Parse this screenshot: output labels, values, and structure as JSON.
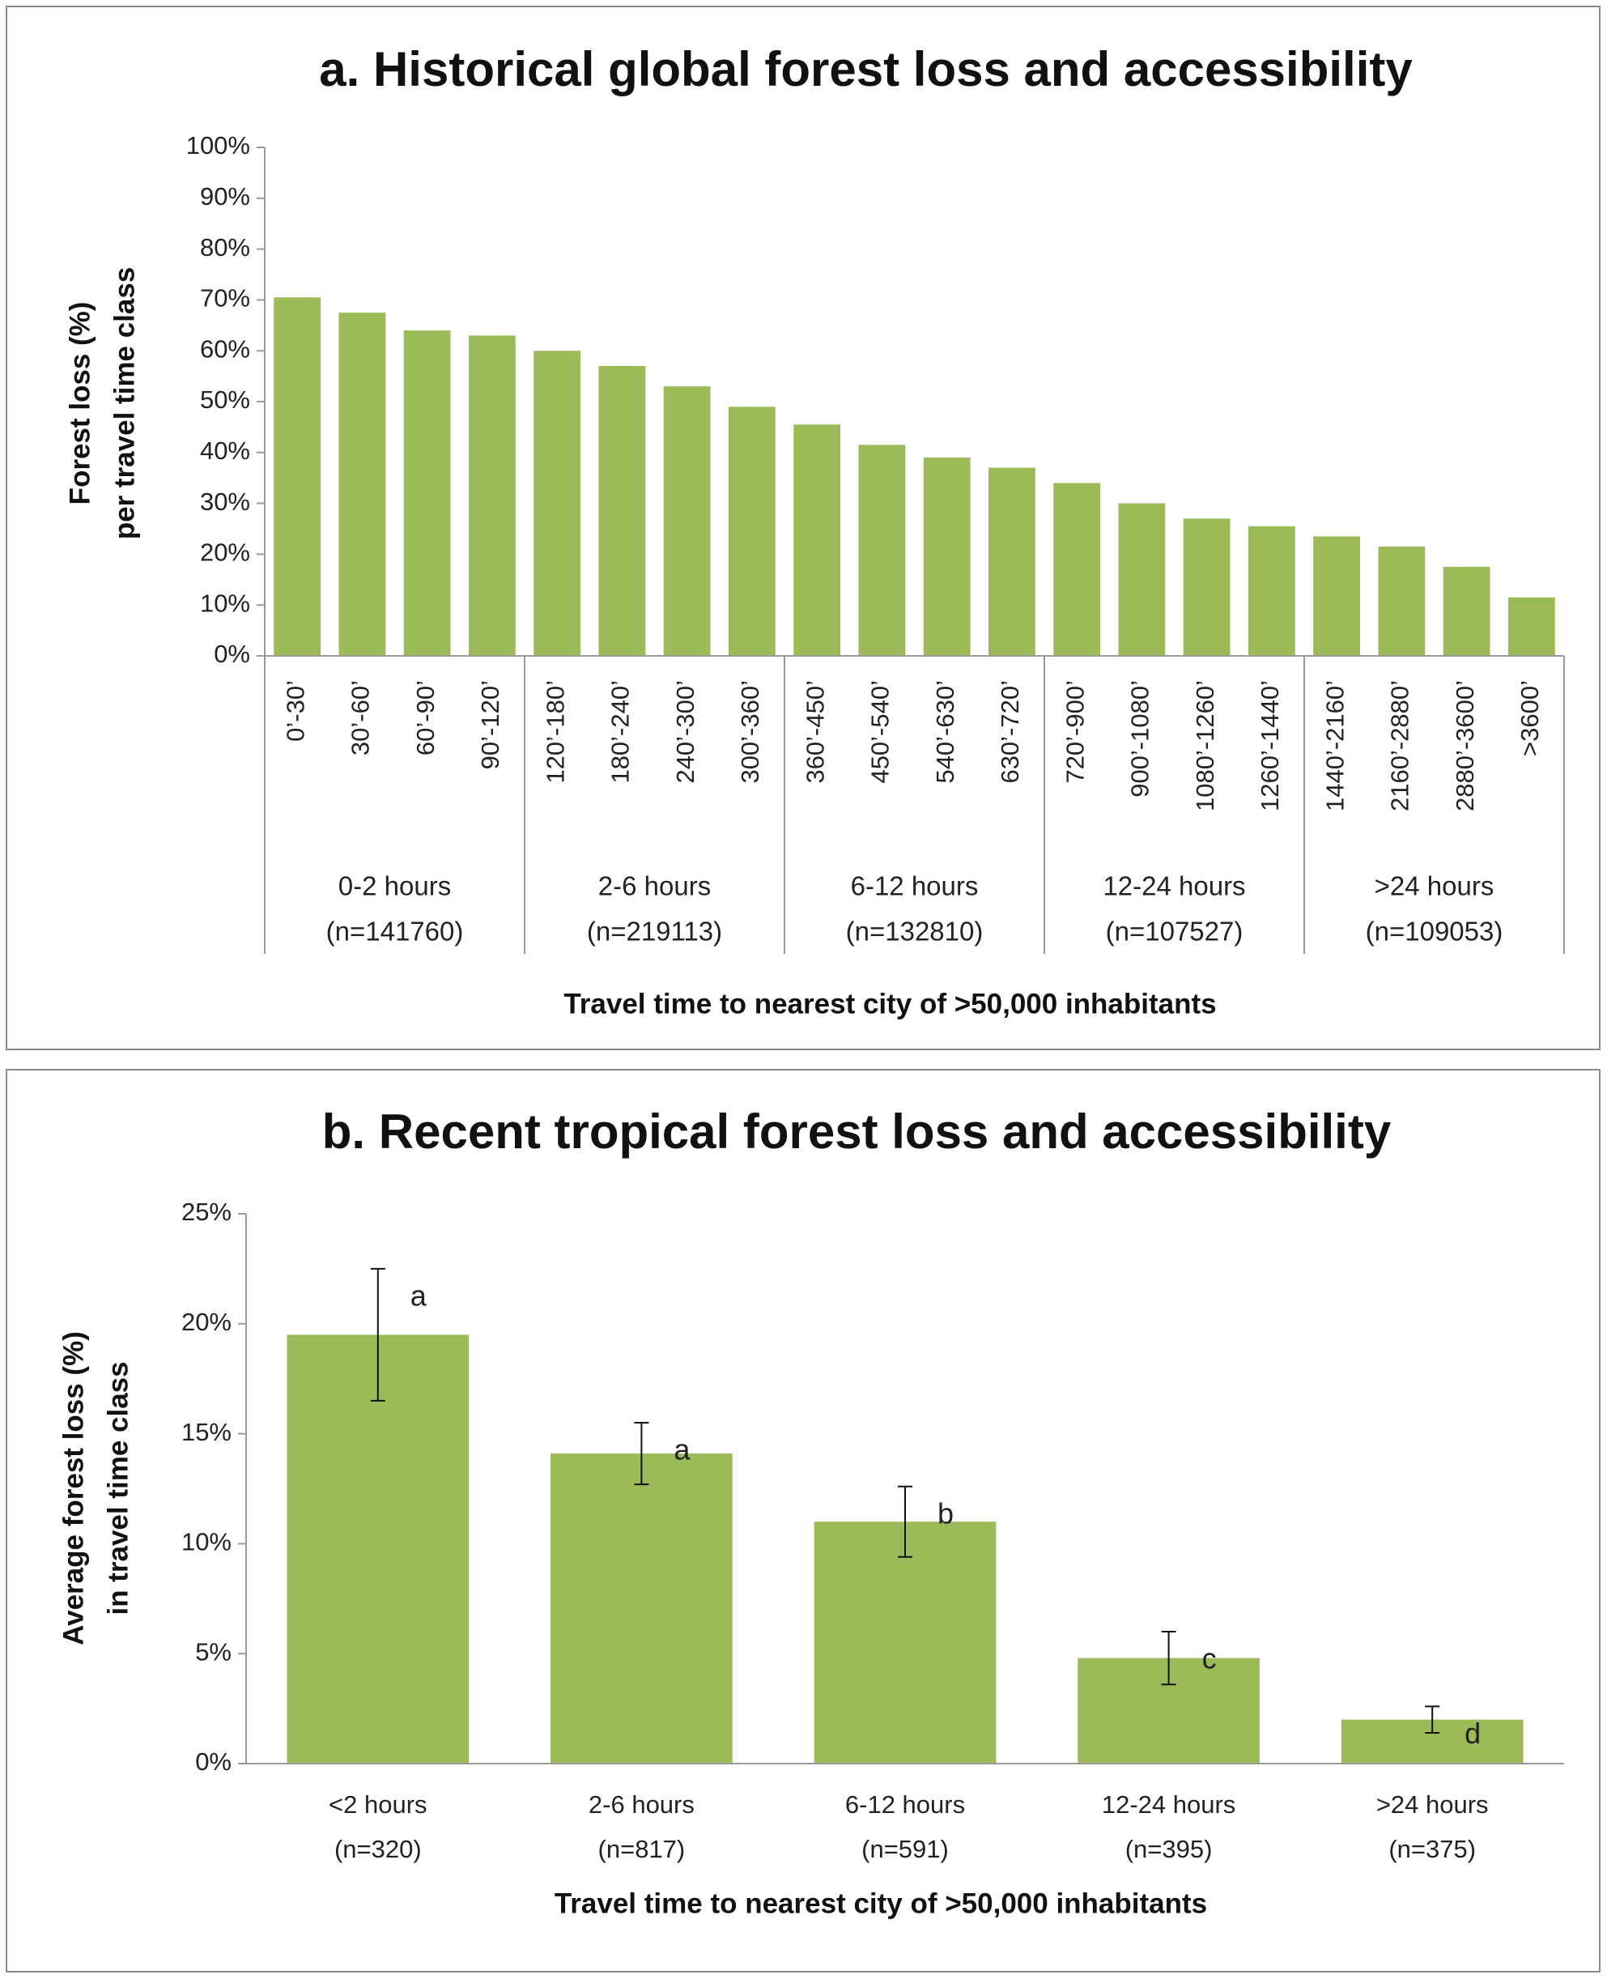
{
  "chart_data": [
    {
      "type": "bar",
      "title": "a. Historical global forest loss and accessibility",
      "y_label": [
        "Forest loss (%)",
        "per travel time class"
      ],
      "x_label": "Travel time to nearest city of >50,000 inhabitants",
      "categories": [
        "0’-30’",
        "30’-60’",
        "60’-90’",
        "90’-120’",
        "120’-180’",
        "180’-240’",
        "240’-300’",
        "300’-360’",
        "360’-450’",
        "450’-540’",
        "540’-630’",
        "630’-720’",
        "720’-900’",
        "900’-1080’",
        "1080’-1260’",
        "1260’-1440’",
        "1440’-2160’",
        "2160’-2880’",
        "2880’-3600’",
        ">3600’"
      ],
      "groups": [
        [
          "0-2 hours",
          "(n=141760)"
        ],
        [
          "2-6 hours",
          "(n=219113)"
        ],
        [
          "6-12 hours",
          "(n=132810)"
        ],
        [
          "12-24 hours",
          "(n=107527)"
        ],
        [
          ">24 hours",
          "(n=109053)"
        ]
      ],
      "values": [
        70.5,
        67.5,
        64,
        63,
        60,
        57,
        53,
        49,
        45.5,
        41.5,
        39,
        37,
        34,
        30,
        27,
        25.5,
        23.5,
        21.5,
        17.5,
        11.5
      ],
      "color": "#9bbb59",
      "ylim": [
        0,
        100
      ],
      "yticks": [
        {
          "value": 0,
          "label": "0%"
        },
        {
          "value": 10,
          "label": "10%"
        },
        {
          "value": 20,
          "label": "20%"
        },
        {
          "value": 30,
          "label": "30%"
        },
        {
          "value": 40,
          "label": "40%"
        },
        {
          "value": 50,
          "label": "50%"
        },
        {
          "value": 60,
          "label": "60%"
        },
        {
          "value": 70,
          "label": "70%"
        },
        {
          "value": 80,
          "label": "80%"
        },
        {
          "value": 90,
          "label": "90%"
        },
        {
          "value": 100,
          "label": "100%"
        }
      ]
    },
    {
      "type": "bar",
      "title": "b. Recent tropical forest loss and accessibility",
      "y_label": [
        "Average forest loss (%)",
        "in travel time class"
      ],
      "x_label": "Travel time to nearest city of >50,000 inhabitants",
      "categories": [
        [
          "<2 hours",
          "(n=320)"
        ],
        [
          "2-6 hours",
          "(n=817)"
        ],
        [
          "6-12 hours",
          "(n=591)"
        ],
        [
          "12-24 hours",
          "(n=395)"
        ],
        [
          ">24 hours",
          "(n=375)"
        ]
      ],
      "values": [
        19.5,
        14.1,
        11.0,
        4.8,
        2.0
      ],
      "errors": [
        3.0,
        1.4,
        1.6,
        1.2,
        0.6
      ],
      "annotations": [
        "a",
        "a",
        "b",
        "c",
        "d"
      ],
      "color": "#9bbb59",
      "ylim": [
        0,
        25
      ],
      "yticks": [
        {
          "value": 0,
          "label": "0%"
        },
        {
          "value": 5,
          "label": "5%"
        },
        {
          "value": 10,
          "label": "10%"
        },
        {
          "value": 15,
          "label": "15%"
        },
        {
          "value": 20,
          "label": "20%"
        },
        {
          "value": 25,
          "label": "25%"
        }
      ]
    }
  ]
}
